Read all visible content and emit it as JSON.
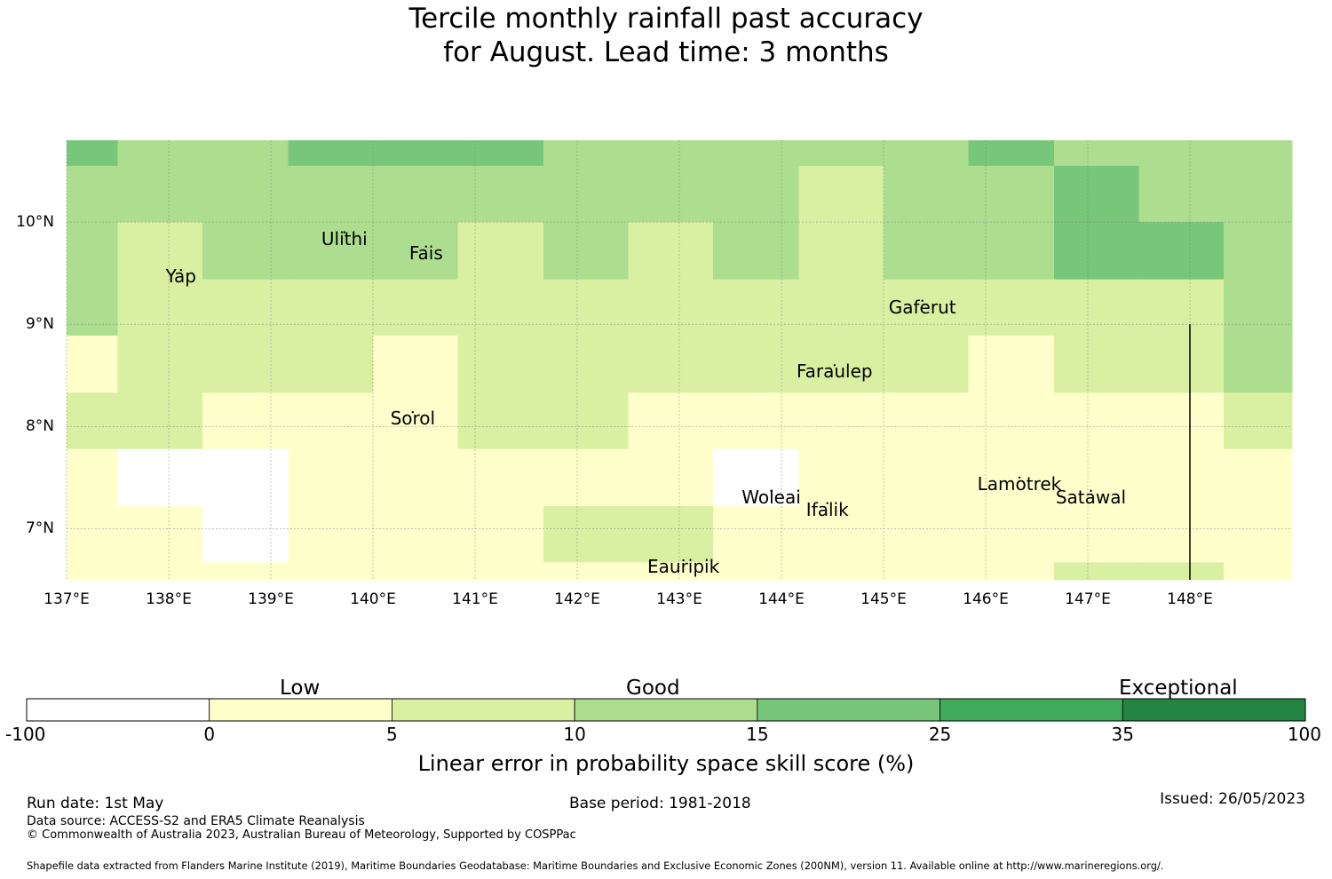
{
  "title": {
    "line1": "Tercile monthly rainfall past accuracy",
    "line2": "for August. Lead time: 3 months"
  },
  "map": {
    "lon_range": [
      137.0,
      149.0
    ],
    "lat_range": [
      6.5,
      10.8
    ],
    "cell_colors": [
      "#ffffff",
      "#ffffcc",
      "#d9f0a3",
      "#addd8e",
      "#78c679",
      "#41ab5d",
      "#238443"
    ],
    "lon_edges": [
      137.0,
      137.5,
      138.33,
      139.17,
      140.0,
      140.83,
      141.67,
      142.5,
      143.33,
      144.17,
      145.0,
      145.83,
      146.67,
      147.5,
      148.33,
      149.0
    ],
    "lat_edges": [
      10.8,
      10.55,
      10.0,
      9.44,
      8.89,
      8.33,
      7.78,
      7.22,
      6.67,
      6.5
    ],
    "grid_classes": [
      [
        4,
        3,
        3,
        4,
        4,
        4,
        3,
        3,
        3,
        3,
        3,
        4,
        3,
        3,
        3
      ],
      [
        3,
        3,
        3,
        3,
        3,
        3,
        3,
        3,
        3,
        2,
        3,
        3,
        4,
        3,
        3
      ],
      [
        3,
        2,
        3,
        3,
        3,
        2,
        3,
        2,
        3,
        2,
        3,
        3,
        4,
        4,
        3
      ],
      [
        3,
        2,
        2,
        2,
        2,
        2,
        2,
        2,
        2,
        2,
        2,
        2,
        2,
        2,
        3
      ],
      [
        1,
        2,
        2,
        2,
        1,
        2,
        2,
        2,
        2,
        2,
        2,
        1,
        2,
        2,
        3
      ],
      [
        2,
        2,
        1,
        1,
        1,
        2,
        2,
        1,
        1,
        1,
        1,
        1,
        1,
        1,
        2
      ],
      [
        1,
        0,
        0,
        1,
        1,
        1,
        1,
        1,
        0,
        1,
        1,
        1,
        1,
        1,
        1
      ],
      [
        1,
        1,
        0,
        1,
        1,
        1,
        2,
        2,
        1,
        1,
        1,
        1,
        1,
        1,
        1
      ],
      [
        1,
        1,
        1,
        1,
        1,
        1,
        1,
        1,
        1,
        1,
        1,
        1,
        2,
        2,
        1
      ]
    ],
    "lon_ticks": [
      {
        "value": 137,
        "label": "137°E"
      },
      {
        "value": 138,
        "label": "138°E"
      },
      {
        "value": 139,
        "label": "139°E"
      },
      {
        "value": 140,
        "label": "140°E"
      },
      {
        "value": 141,
        "label": "141°E"
      },
      {
        "value": 142,
        "label": "142°E"
      },
      {
        "value": 143,
        "label": "143°E"
      },
      {
        "value": 144,
        "label": "144°E"
      },
      {
        "value": 145,
        "label": "145°E"
      },
      {
        "value": 146,
        "label": "146°E"
      },
      {
        "value": 147,
        "label": "147°E"
      },
      {
        "value": 148,
        "label": "148°E"
      }
    ],
    "lat_ticks": [
      {
        "value": 10,
        "label": "10°N"
      },
      {
        "value": 9,
        "label": "9°N"
      },
      {
        "value": 8,
        "label": "8°N"
      },
      {
        "value": 7,
        "label": "7°N"
      }
    ],
    "boundary_line": {
      "lon": 148.0,
      "lat_from": 9.0,
      "lat_to": 6.5
    },
    "places": [
      {
        "name": "Ulithi",
        "lon": 139.72,
        "lat": 9.9
      },
      {
        "name": "Fais",
        "lon": 140.52,
        "lat": 9.76
      },
      {
        "name": "Yap",
        "lon": 138.12,
        "lat": 9.53
      },
      {
        "name": "Gaferut",
        "lon": 145.38,
        "lat": 9.23
      },
      {
        "name": "Faraulep",
        "lon": 144.52,
        "lat": 8.6
      },
      {
        "name": "Sorol",
        "lon": 140.39,
        "lat": 8.14
      },
      {
        "name": "Woleai",
        "lon": 143.9,
        "lat": 7.37
      },
      {
        "name": "Ifalik",
        "lon": 144.45,
        "lat": 7.25
      },
      {
        "name": "Lamotrek",
        "lon": 146.33,
        "lat": 7.5
      },
      {
        "name": "Satawal",
        "lon": 147.03,
        "lat": 7.37
      },
      {
        "name": "Eauripik",
        "lon": 143.04,
        "lat": 6.69
      }
    ]
  },
  "colorbar": {
    "categories": [
      "Low",
      "Good",
      "Exceptional"
    ],
    "tick_labels": [
      "-100",
      "0",
      "5",
      "10",
      "15",
      "25",
      "35",
      "100"
    ],
    "colors": [
      "#ffffff",
      "#ffffcc",
      "#d9f0a3",
      "#addd8e",
      "#78c679",
      "#41ab5d",
      "#238443"
    ],
    "label": "Linear error in probability space skill score (%)"
  },
  "footer": {
    "run_date": "Run date: 1st May",
    "base_period": "Base period: 1981-2018",
    "issued": "Issued: 26/05/2023",
    "data_source": "Data source: ACCESS-S2 and ERA5 Climate Reanalysis",
    "copyright": "© Commonwealth of Australia 2023, Australian Bureau of Meteorology, Supported by COSPPac",
    "shapefile": "Shapefile data extracted from Flanders Marine Institute (2019), Maritime Boundaries Geodatabase: Maritime Boundaries and Exclusive Economic Zones (200NM), version 11. Available online at http://www.marineregions.org/."
  }
}
